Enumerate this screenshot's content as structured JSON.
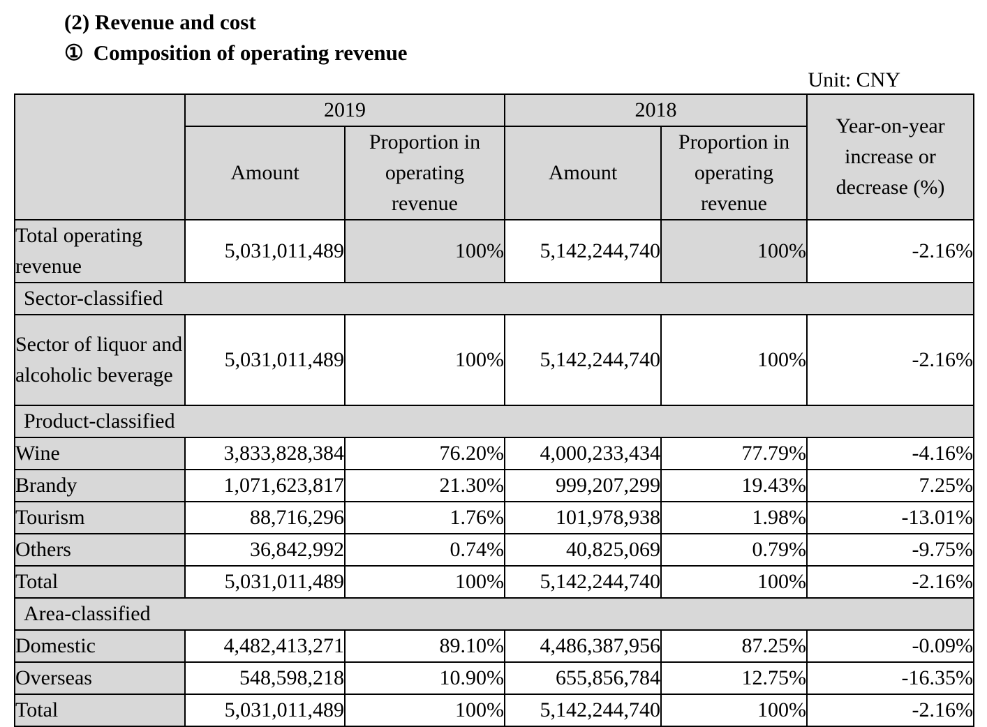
{
  "page": {
    "heading1": "(2) Revenue and cost",
    "heading2_marker": "①",
    "heading2_text": "Composition of operating revenue",
    "unit_label": "Unit: CNY"
  },
  "table": {
    "year_left": "2019",
    "year_right": "2018",
    "amount_header": "Amount",
    "proportion_header": "Proportion in operating revenue",
    "yoy_header": "Year-on-year increase or decrease (%)",
    "colors": {
      "header_bg": "#d8d8d8",
      "border": "#000000"
    },
    "rows": [
      {
        "type": "data",
        "label": "Total operating revenue",
        "amount_2019": "5,031,011,489",
        "prop_2019": "100%",
        "amount_2018": "5,142,244,740",
        "prop_2018": "100%",
        "yoy": "-2.16%",
        "shaded_proportions": true
      },
      {
        "type": "section",
        "label": "Sector-classified"
      },
      {
        "type": "data",
        "label": "Sector of liquor and alcoholic beverage",
        "amount_2019": "5,031,011,489",
        "prop_2019": "100%",
        "amount_2018": "5,142,244,740",
        "prop_2018": "100%",
        "yoy": "-2.16%"
      },
      {
        "type": "section",
        "label": "Product-classified"
      },
      {
        "type": "data",
        "label": "Wine",
        "amount_2019": "3,833,828,384",
        "prop_2019": "76.20%",
        "amount_2018": "4,000,233,434",
        "prop_2018": "77.79%",
        "yoy": "-4.16%"
      },
      {
        "type": "data",
        "label": "Brandy",
        "amount_2019": "1,071,623,817",
        "prop_2019": "21.30%",
        "amount_2018": "999,207,299",
        "prop_2018": "19.43%",
        "yoy": "7.25%"
      },
      {
        "type": "data",
        "label": "Tourism",
        "amount_2019": "88,716,296",
        "prop_2019": "1.76%",
        "amount_2018": "101,978,938",
        "prop_2018": "1.98%",
        "yoy": "-13.01%"
      },
      {
        "type": "data",
        "label": "Others",
        "amount_2019": "36,842,992",
        "prop_2019": "0.74%",
        "amount_2018": "40,825,069",
        "prop_2018": "0.79%",
        "yoy": "-9.75%"
      },
      {
        "type": "data",
        "label": "Total",
        "amount_2019": "5,031,011,489",
        "prop_2019": "100%",
        "amount_2018": "5,142,244,740",
        "prop_2018": "100%",
        "yoy": "-2.16%"
      },
      {
        "type": "section",
        "label": "Area-classified"
      },
      {
        "type": "data",
        "label": "Domestic",
        "amount_2019": "4,482,413,271",
        "prop_2019": "89.10%",
        "amount_2018": "4,486,387,956",
        "prop_2018": "87.25%",
        "yoy": "-0.09%"
      },
      {
        "type": "data",
        "label": "Overseas",
        "amount_2019": "548,598,218",
        "prop_2019": "10.90%",
        "amount_2018": "655,856,784",
        "prop_2018": "12.75%",
        "yoy": "-16.35%"
      },
      {
        "type": "data",
        "label": "Total",
        "amount_2019": "5,031,011,489",
        "prop_2019": "100%",
        "amount_2018": "5,142,244,740",
        "prop_2018": "100%",
        "yoy": "-2.16%"
      }
    ]
  }
}
